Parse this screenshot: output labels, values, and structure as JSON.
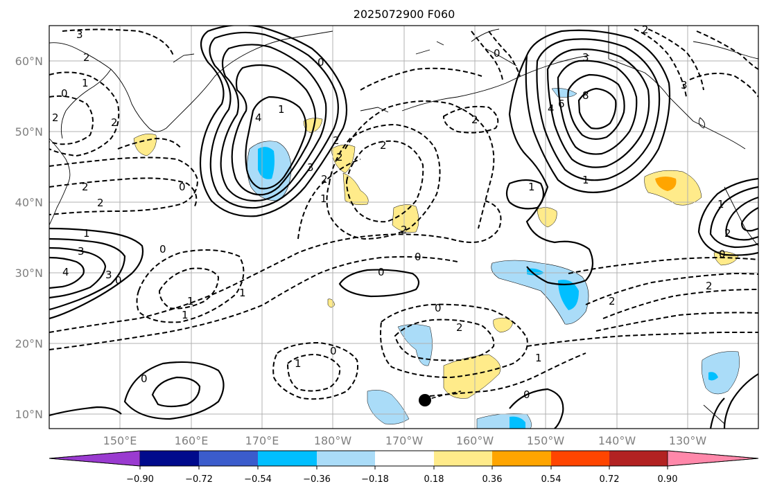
{
  "title": "2025072900 F060",
  "lat_labels": [
    "60°N",
    "50°N",
    "40°N",
    "30°N",
    "20°N",
    "10°N"
  ],
  "lon_labels": [
    "150°E",
    "160°E",
    "170°E",
    "180°W",
    "170°W",
    "160°W",
    "150°W",
    "140°W",
    "130°W"
  ],
  "colorbar": {
    "ticks": [
      "−0.90",
      "−0.72",
      "−0.54",
      "−0.36",
      "−0.18",
      "0.18",
      "0.36",
      "0.54",
      "0.72",
      "0.90"
    ],
    "colors": [
      "#9a3bd0",
      "#000a8c",
      "#3b5ccc",
      "#00bfff",
      "#aadcf8",
      "#ffffff",
      "#ffeb8a",
      "#ffa500",
      "#ff4500",
      "#b22222",
      "#ff88aa"
    ]
  },
  "contour_labels": {
    "c1": "3",
    "c2": "2",
    "c3": "1",
    "c4": "0",
    "c5": "2",
    "c6": "2",
    "c7": "2",
    "c8": "2",
    "c9": "1",
    "c10": "3",
    "c11": "4",
    "c12": "0",
    "c13": "3",
    "c14": "4",
    "c15": "1",
    "c16": "2",
    "c17": "3",
    "c18": "2",
    "c19": "0",
    "c20": "1",
    "c21": "2",
    "c22": "0",
    "c23": "0",
    "c24": "0",
    "c25": "1",
    "c26": "1",
    "c27": "0",
    "c28": "2",
    "c29": "1",
    "c30": "0",
    "c31": "0",
    "c32": "2",
    "c33": "1",
    "c34": "0",
    "c35": "2",
    "c36": "0",
    "c37": "3",
    "c38": "8",
    "c39": "6",
    "c40": "4",
    "c41": "2",
    "c42": "1",
    "c43": "1",
    "c44": "1",
    "c45": "2",
    "c46": "2",
    "c47": "3",
    "c48": "0",
    "c49": "1",
    "c50": "2",
    "c51": "0",
    "c52": "2"
  },
  "typhoon_marker": "storm-center"
}
